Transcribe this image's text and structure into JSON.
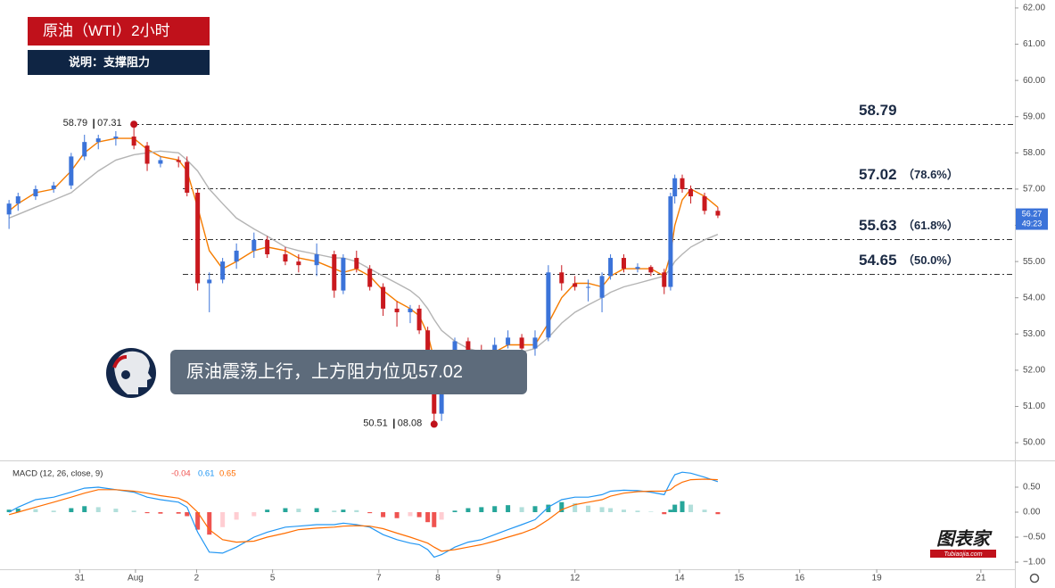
{
  "header": {
    "title": "原油（WTI）2小时",
    "subtitle": "说明：支撑阻力"
  },
  "bubble": {
    "text": "原油震荡上行，上方阻力位见57.02"
  },
  "logo": {
    "name": "图表家",
    "site": "Tubiaojia.com"
  },
  "chart_data": [
    {
      "type": "candlestick",
      "x": [
        1.7,
        3.4,
        6.7,
        10.1,
        13.4,
        15.9,
        18.5,
        21.8,
        25.2,
        27.7,
        30.2,
        33.6,
        35.2,
        37.2,
        39.4,
        41.9,
        44.5,
        47.8,
        50.3,
        53.7,
        56.2,
        59.6,
        62.9,
        64.6,
        67.1,
        69.6,
        72.1,
        74.7,
        77.2,
        78.9,
        80.5,
        81.7,
        83.1,
        85.6,
        88.1,
        90.6,
        93.1,
        95.6,
        98.2,
        100.7,
        103.2,
        105.7,
        108.2,
        110.7,
        113.3,
        114.9,
        117.4,
        120.0,
        122.5,
        125.0,
        126.2,
        127.0,
        128.4,
        130.0,
        132.6,
        135.1
      ],
      "open": [
        56.3,
        56.6,
        56.8,
        57.0,
        57.1,
        57.9,
        58.3,
        58.4,
        58.45,
        58.2,
        57.7,
        57.8,
        57.75,
        56.9,
        54.4,
        54.5,
        55.0,
        55.3,
        55.6,
        55.2,
        55.0,
        54.9,
        55.2,
        54.2,
        55.1,
        54.8,
        54.3,
        53.7,
        53.6,
        53.7,
        53.1,
        52.3,
        50.8,
        52.0,
        52.8,
        52.5,
        52.3,
        52.7,
        52.9,
        52.6,
        52.9,
        54.7,
        54.4,
        54.3,
        54.0,
        54.6,
        55.1,
        54.8,
        54.85,
        54.7,
        54.3,
        56.8,
        57.3,
        57.0,
        56.8,
        56.4
      ],
      "high": [
        56.7,
        56.9,
        57.1,
        57.2,
        58.0,
        58.5,
        58.5,
        58.6,
        58.79,
        58.3,
        57.9,
        57.9,
        57.9,
        57.0,
        54.7,
        55.1,
        55.5,
        55.8,
        55.7,
        55.4,
        55.2,
        55.5,
        55.3,
        55.2,
        55.3,
        54.9,
        54.4,
        53.9,
        53.8,
        53.8,
        53.2,
        52.4,
        52.1,
        52.9,
        52.9,
        52.7,
        52.9,
        53.1,
        53.0,
        53.1,
        54.9,
        54.9,
        54.6,
        54.5,
        54.7,
        55.2,
        55.2,
        54.95,
        54.9,
        54.8,
        56.9,
        57.4,
        57.4,
        57.1,
        56.9,
        56.5
      ],
      "low": [
        55.9,
        56.4,
        56.7,
        56.9,
        57.0,
        57.8,
        58.1,
        58.2,
        58.1,
        57.5,
        57.6,
        57.6,
        56.8,
        54.2,
        53.6,
        54.4,
        54.8,
        55.1,
        55.1,
        54.9,
        54.7,
        54.6,
        54.0,
        54.1,
        54.7,
        54.2,
        53.5,
        53.2,
        53.3,
        53.0,
        52.1,
        50.51,
        50.6,
        51.9,
        52.3,
        52.0,
        52.2,
        52.6,
        52.5,
        52.4,
        52.8,
        54.2,
        54.2,
        53.9,
        53.6,
        54.5,
        54.7,
        54.7,
        54.6,
        54.1,
        54.2,
        56.6,
        56.9,
        56.6,
        56.3,
        56.2
      ],
      "close": [
        56.6,
        56.8,
        57.0,
        57.1,
        57.9,
        58.3,
        58.4,
        58.45,
        58.2,
        57.7,
        57.8,
        57.75,
        56.9,
        54.4,
        54.5,
        55.0,
        55.3,
        55.6,
        55.2,
        55.0,
        54.9,
        55.2,
        54.2,
        55.1,
        54.8,
        54.3,
        53.7,
        53.6,
        53.7,
        53.1,
        52.3,
        50.8,
        52.0,
        52.8,
        52.5,
        52.3,
        52.7,
        52.9,
        52.6,
        52.9,
        54.7,
        54.4,
        54.3,
        54.3,
        54.6,
        55.1,
        54.8,
        54.85,
        54.7,
        54.3,
        56.8,
        57.3,
        57.0,
        56.8,
        56.4,
        56.27
      ],
      "up_color": "#3b73d9",
      "down_color": "#c9191e",
      "lines": [
        {
          "color": "#f57c00",
          "values": [
            56.4,
            56.6,
            56.9,
            57.0,
            57.5,
            58.0,
            58.3,
            58.4,
            58.4,
            58.1,
            57.9,
            57.8,
            57.5,
            56.5,
            55.3,
            54.8,
            55.0,
            55.3,
            55.4,
            55.3,
            55.1,
            55.0,
            54.8,
            54.7,
            54.8,
            54.6,
            54.2,
            53.9,
            53.7,
            53.5,
            53.0,
            52.3,
            51.9,
            52.2,
            52.5,
            52.5,
            52.5,
            52.7,
            52.7,
            52.7,
            53.3,
            54.0,
            54.4,
            54.4,
            54.3,
            54.6,
            54.8,
            54.8,
            54.8,
            54.6,
            55.2,
            56.0,
            56.7,
            57.0,
            56.8,
            56.5
          ]
        },
        {
          "color": "#b4b4b4",
          "values": [
            56.2,
            56.3,
            56.5,
            56.7,
            56.9,
            57.2,
            57.5,
            57.8,
            57.95,
            58.0,
            58.05,
            58.0,
            57.8,
            57.5,
            57.0,
            56.6,
            56.2,
            55.9,
            55.7,
            55.4,
            55.3,
            55.2,
            55.1,
            55.1,
            55.0,
            54.8,
            54.6,
            54.4,
            54.2,
            54.0,
            53.7,
            53.4,
            53.1,
            52.8,
            52.6,
            52.5,
            52.4,
            52.45,
            52.5,
            52.6,
            52.9,
            53.3,
            53.6,
            53.8,
            54.0,
            54.15,
            54.3,
            54.4,
            54.5,
            54.6,
            54.8,
            55.0,
            55.2,
            55.4,
            55.6,
            55.75
          ]
        }
      ],
      "levels": [
        {
          "value": 58.79
        },
        {
          "value": 57.02,
          "ratio": "（78.6%）"
        },
        {
          "value": 55.63,
          "ratio": "（61.8%）"
        },
        {
          "value": 54.65,
          "ratio": "（50.0%）"
        }
      ],
      "annotations": {
        "high": {
          "price": 58.79,
          "time": "07.31"
        },
        "low": {
          "price": 50.51,
          "time": "08.08"
        }
      },
      "countdown": "49:23",
      "xlim": [
        0,
        191
      ],
      "ylim": [
        49.51,
        62.22
      ],
      "xticks": [
        {
          "value": 15,
          "label": "31"
        },
        {
          "value": 25.5,
          "label": "Aug"
        },
        {
          "value": 37,
          "label": "2"
        },
        {
          "value": 51.3,
          "label": "5"
        },
        {
          "value": 71.3,
          "label": "7"
        },
        {
          "value": 82.4,
          "label": "8"
        },
        {
          "value": 93.8,
          "label": "9"
        },
        {
          "value": 108.2,
          "label": "12"
        },
        {
          "value": 127.9,
          "label": "14"
        },
        {
          "value": 139.1,
          "label": "15"
        },
        {
          "value": 150.5,
          "label": "16"
        },
        {
          "value": 165,
          "label": "19"
        },
        {
          "value": 184.6,
          "label": "21"
        }
      ],
      "yticks": [
        {
          "value": 50,
          "label": "50.00"
        },
        {
          "value": 51,
          "label": "51.00"
        },
        {
          "value": 52,
          "label": "52.00"
        },
        {
          "value": 53,
          "label": "53.00"
        },
        {
          "value": 54,
          "label": "54.00"
        },
        {
          "value": 55,
          "label": "55.00"
        },
        {
          "value": 56,
          "label": "56.00"
        },
        {
          "value": 57,
          "label": "57.00"
        },
        {
          "value": 58,
          "label": "58.00"
        },
        {
          "value": 59,
          "label": "59.00"
        },
        {
          "value": 60,
          "label": "60.00"
        },
        {
          "value": 61,
          "label": "61.00"
        },
        {
          "value": 62,
          "label": "62.00"
        }
      ]
    },
    {
      "type": "macd",
      "title": "MACD (12, 26, close, 9)",
      "histogram": [
        0.05,
        0.07,
        0.06,
        0.03,
        0.08,
        0.12,
        0.1,
        0.07,
        0.03,
        -0.02,
        -0.03,
        -0.03,
        -0.08,
        -0.35,
        -0.45,
        -0.3,
        -0.15,
        -0.08,
        0.05,
        0.08,
        0.07,
        0.08,
        0.03,
        0.05,
        0.04,
        -0.02,
        -0.1,
        -0.12,
        -0.08,
        -0.1,
        -0.2,
        -0.3,
        -0.15,
        0.03,
        0.08,
        0.1,
        0.12,
        0.14,
        0.1,
        0.12,
        0.15,
        0.2,
        0.18,
        0.13,
        0.1,
        0.08,
        0.05,
        0.03,
        0.01,
        -0.04,
        0.05,
        0.15,
        0.22,
        0.15,
        0.05,
        -0.04
      ],
      "macd": {
        "color": "#2196f3",
        "values": [
          0.0,
          0.1,
          0.25,
          0.3,
          0.4,
          0.48,
          0.5,
          0.45,
          0.4,
          0.3,
          0.25,
          0.2,
          0.1,
          -0.4,
          -0.8,
          -0.82,
          -0.7,
          -0.5,
          -0.4,
          -0.3,
          -0.28,
          -0.25,
          -0.25,
          -0.22,
          -0.25,
          -0.3,
          -0.45,
          -0.55,
          -0.62,
          -0.65,
          -0.75,
          -0.9,
          -0.85,
          -0.7,
          -0.6,
          -0.55,
          -0.45,
          -0.35,
          -0.25,
          -0.15,
          0.1,
          0.25,
          0.3,
          0.3,
          0.35,
          0.42,
          0.44,
          0.43,
          0.4,
          0.35,
          0.6,
          0.75,
          0.8,
          0.78,
          0.7,
          0.61
        ]
      },
      "signal": {
        "color": "#ff6d00",
        "values": [
          -0.05,
          0.0,
          0.1,
          0.2,
          0.3,
          0.38,
          0.45,
          0.45,
          0.42,
          0.38,
          0.33,
          0.28,
          0.2,
          0.0,
          -0.35,
          -0.55,
          -0.6,
          -0.58,
          -0.5,
          -0.42,
          -0.35,
          -0.32,
          -0.3,
          -0.28,
          -0.27,
          -0.28,
          -0.33,
          -0.42,
          -0.5,
          -0.56,
          -0.62,
          -0.7,
          -0.78,
          -0.75,
          -0.7,
          -0.65,
          -0.58,
          -0.5,
          -0.42,
          -0.32,
          -0.15,
          0.05,
          0.15,
          0.2,
          0.25,
          0.32,
          0.38,
          0.41,
          0.42,
          0.42,
          0.45,
          0.52,
          0.6,
          0.65,
          0.66,
          0.65
        ]
      },
      "hist_colors": {
        "up_strong": "#26a69a",
        "up_weak": "#b2dfdb",
        "down_strong": "#ef5350",
        "down_weak": "#ffcdd2"
      },
      "ylim": [
        -1.125,
        1.0
      ],
      "yticks": [
        {
          "value": 0.5,
          "label": "0.50"
        },
        {
          "value": 0,
          "label": "0.00"
        },
        {
          "value": -0.5,
          "label": "−0.50"
        },
        {
          "value": -1,
          "label": "−1.00"
        }
      ]
    }
  ]
}
